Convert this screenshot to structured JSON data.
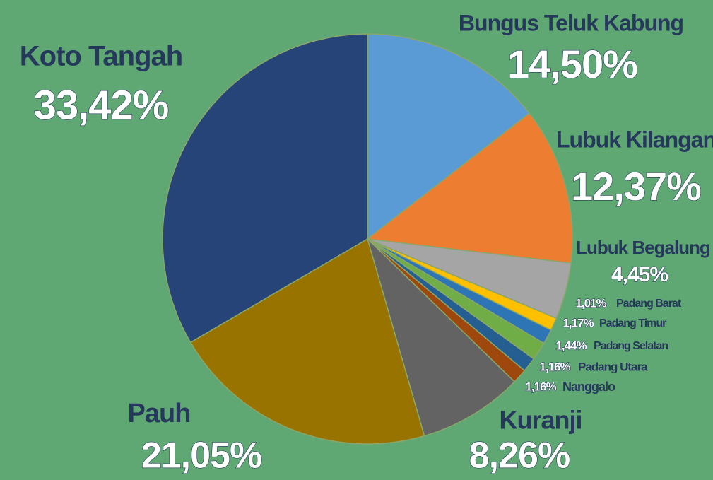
{
  "chart_data": {
    "type": "pie",
    "categories": [
      "Bungus Teluk Kabung",
      "Lubuk Kilangan",
      "Lubuk Begalung",
      "Padang Barat",
      "Padang Timur",
      "Padang Selatan",
      "Padang Utara",
      "Nanggalo",
      "Kuranji",
      "Pauh",
      "Koto Tangah"
    ],
    "values": [
      14.5,
      12.37,
      4.45,
      1.01,
      1.17,
      1.44,
      1.16,
      1.16,
      8.26,
      21.05,
      33.42
    ],
    "value_labels": [
      "14,50%",
      "12,37%",
      "4,45%",
      "1,01%",
      "1,17%",
      "1,44%",
      "1,16%",
      "1,16%",
      "8,26%",
      "21,05%",
      "33,42%"
    ],
    "colors": [
      "#5b9bd5",
      "#ed7d31",
      "#a5a5a5",
      "#ffc000",
      "#2e75b6",
      "#70ad47",
      "#255e91",
      "#9e480e",
      "#636363",
      "#997300",
      "#264478"
    ]
  }
}
